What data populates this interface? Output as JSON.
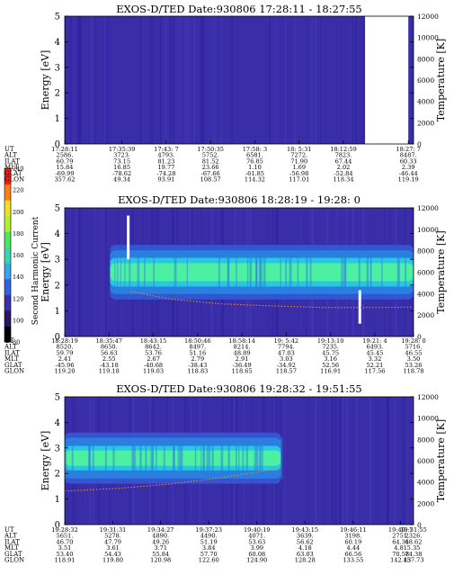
{
  "panel_order_labels": [
    "UT",
    "ALT",
    "ILAT",
    "MLT",
    "GLAT",
    "GLON"
  ],
  "colorbar": {
    "label": "Second Harmonic Current",
    "ticks": [
      "80",
      "100",
      "120",
      "140",
      "160",
      "180",
      "200",
      "220",
      "240"
    ],
    "colors": [
      "#000000",
      "#2b1460",
      "#3b2fb0",
      "#2f63e8",
      "#33a8f0",
      "#35d8b0",
      "#4ae860",
      "#b0f030",
      "#f0e020",
      "#ff8010",
      "#ff2010"
    ]
  },
  "colors": {
    "background": "#3a2ea8",
    "band_core": "#4df0a0",
    "band_mid": "#28c8e0",
    "band_outer": "#2a7ee0",
    "band_edge": "#3454d0",
    "temperature_trace": "#ff8c1a",
    "gap": "#ffffff"
  },
  "chart_data": [
    {
      "type": "heatmap",
      "title": "EXOS-D/TED   Date:930806  17:28:11 - 18:27:55",
      "ylabel": "Energy [eV]",
      "y2label": "Temperature [K]",
      "ylim": [
        0,
        5
      ],
      "y_ticks": [
        "0",
        "1",
        "2",
        "3",
        "4",
        "5"
      ],
      "y2lim": [
        0,
        12000
      ],
      "y2_ticks": [
        "0",
        "2000",
        "4000",
        "6000",
        "8000",
        "10000",
        "12000"
      ],
      "band": null,
      "data_gaps": [
        [
          0.861,
          0.985
        ]
      ],
      "vertical_marks": [],
      "temperature_trace": [],
      "ephemeris": {
        "positions": [
          0.0,
          0.164,
          0.291,
          0.418,
          0.545,
          0.672,
          0.799,
          0.985
        ],
        "UT": [
          "17:28:11",
          "17:35:39",
          "17:43: 7",
          "17:50:35",
          "17:58: 3",
          "18: 5:31",
          "18:12:59",
          "18:27: 7"
        ],
        "ALT": [
          "2586.",
          "3723.",
          "4793.",
          "5752.",
          "6581.",
          "7272.",
          "7823.",
          "8487."
        ],
        "ILAT": [
          "60.79",
          "73.15",
          "81.23",
          "81.52",
          "76.85",
          "71.90",
          "67.44",
          "60.33"
        ],
        "MLT": [
          "15.84",
          "16.85",
          "19.77",
          "23.66",
          "1.10",
          "1.69",
          "2.02",
          "2.39"
        ],
        "GLAT": [
          "-69.99",
          "-78.62",
          "-74.28",
          "-67.66",
          "-61.85",
          "-56.98",
          "-52.84",
          "-46.44"
        ],
        "GLON": [
          "357.62",
          "49.34",
          "93.91",
          "108.57",
          "114.32",
          "117.01",
          "118.34",
          "119.19"
        ]
      }
    },
    {
      "type": "heatmap",
      "title": "EXOS-D/TED   Date:930806  18:28:19 - 19:28: 0",
      "ylabel": "Energy [eV]",
      "y2label": "Temperature [K]",
      "ylim": [
        0,
        5
      ],
      "y_ticks": [
        "0",
        "1",
        "2",
        "3",
        "4",
        "5"
      ],
      "y2lim": [
        0,
        12000
      ],
      "y2_ticks": [
        "0",
        "2000",
        "4000",
        "6000",
        "8000",
        "10000",
        "12000"
      ],
      "band": {
        "start": 0.13,
        "end": 1.0,
        "center_eV": 2.5,
        "core_halfwidth_eV": 0.35,
        "outer_halfwidth_eV": 0.85
      },
      "data_gaps": [],
      "vertical_marks": [
        {
          "x": 0.182,
          "y_from_eV": 3.0,
          "y_to_eV": 4.7
        },
        {
          "x": 0.846,
          "y_from_eV": 0.5,
          "y_to_eV": 1.8
        }
      ],
      "temperature_trace": [
        [
          0.19,
          4200
        ],
        [
          0.3,
          3500
        ],
        [
          0.45,
          3050
        ],
        [
          0.6,
          2850
        ],
        [
          0.75,
          2700
        ],
        [
          0.9,
          2700
        ],
        [
          1.0,
          2750
        ]
      ],
      "ephemeris": {
        "positions": [
          0.0,
          0.127,
          0.254,
          0.381,
          0.508,
          0.635,
          0.762,
          0.889,
          1.0
        ],
        "UT": [
          "18:28:19",
          "18:35:47",
          "18:43:15",
          "18:50:46",
          "18:58:14",
          "19: 5:42",
          "19:13:10",
          "19:21: 4",
          "19:28: 0"
        ],
        "ALT": [
          "8520.",
          "8650.",
          "8642.",
          "8497.",
          "8214.",
          "7794.",
          "7235.",
          "6493.",
          "5716."
        ],
        "ILAT": [
          "59.79",
          "56.63",
          "53.76",
          "51.16",
          "48.89",
          "47.03",
          "45.75",
          "45.45",
          "46.55"
        ],
        "MLT": [
          "2.41",
          "2.55",
          "2.67",
          "2.79",
          "2.91",
          "3.03",
          "3.16",
          "3.32",
          "3.50"
        ],
        "GLAT": [
          "-45.96",
          "-43.18",
          "-40.68",
          "-38.43",
          "-36.49",
          "-34.92",
          "52.56",
          "52.21",
          "53.26"
        ],
        "GLON": [
          "119.20",
          "119.18",
          "119.03",
          "118.83",
          "118.65",
          "118.57",
          "116.91",
          "117.56",
          "118.78"
        ]
      }
    },
    {
      "type": "heatmap",
      "title": "EXOS-D/TED   Date:930806  19:28:32 - 19:51:55",
      "ylabel": "Energy [eV]",
      "y2label": "Temperature [K]",
      "ylim": [
        0,
        5
      ],
      "y_ticks": [
        "0",
        "1",
        "2",
        "3",
        "4",
        "5"
      ],
      "y2lim": [
        0,
        12000
      ],
      "y2_ticks": [
        "0",
        "2000",
        "4000",
        "6000",
        "8000",
        "10000",
        "12000"
      ],
      "band": {
        "start": 0.0,
        "end": 0.62,
        "center_eV": 2.6,
        "core_halfwidth_eV": 0.3,
        "outer_halfwidth_eV": 0.8
      },
      "data_gaps": [],
      "vertical_marks": [],
      "temperature_trace": [
        [
          0.0,
          3150
        ],
        [
          0.15,
          3400
        ],
        [
          0.3,
          3800
        ],
        [
          0.45,
          4400
        ],
        [
          0.62,
          5300
        ]
      ],
      "ephemeris": {
        "positions": [
          0.0,
          0.138,
          0.275,
          0.413,
          0.551,
          0.689,
          0.827,
          0.963,
          1.0
        ],
        "UT": [
          "19:28:32",
          "19:31:31",
          "19:34:27",
          "19:37:23",
          "19:40:19",
          "19:43:15",
          "19:46:11",
          "19:49: 7",
          "19:51:55"
        ],
        "ALT": [
          "5651.",
          "5278.",
          "4890.",
          "4490.",
          "4071.",
          "3639.",
          "3198.",
          "2751.",
          "2326."
        ],
        "ILAT": [
          "46.70",
          "47.79",
          "49.26",
          "51.19",
          "53.63",
          "56.62",
          "60.19",
          "64.31",
          "68.62"
        ],
        "MLT": [
          "3.51",
          "3.61",
          "3.71",
          "3.84",
          "3.99",
          "4.18",
          "4.44",
          "4.81",
          "5.35"
        ],
        "GLAT": [
          "53.40",
          "54.43",
          "55.84",
          "57.70",
          "60.08",
          "63.03",
          "66.56",
          "70.58",
          "74.38"
        ],
        "GLON": [
          "118.91",
          "119.80",
          "120.98",
          "122.60",
          "124.90",
          "128.28",
          "133.55",
          "142.43",
          "157.73"
        ]
      }
    }
  ]
}
